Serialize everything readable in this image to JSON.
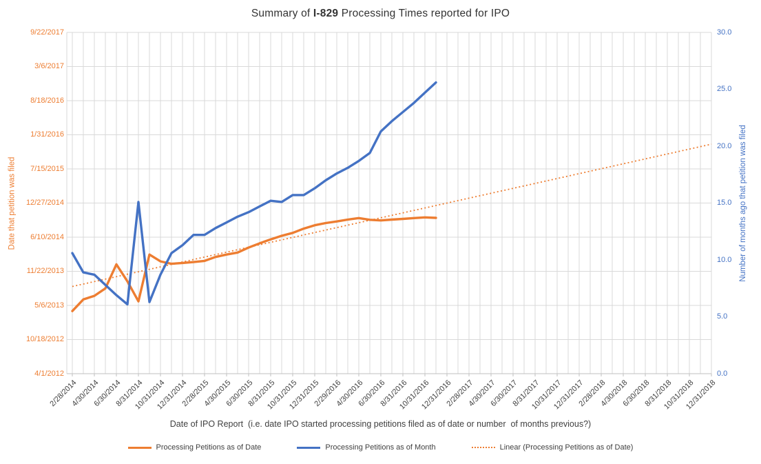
{
  "title": {
    "prefix": "Summary of ",
    "emphasis": "I-829",
    "suffix": " Processing Times reported for IPO"
  },
  "colors": {
    "orange_series": "#ED7D31",
    "blue_series": "#4472C4",
    "gridline": "#D9D9D9",
    "axis_line": "#BFBFBF",
    "tick_text": "#404040"
  },
  "chart_data": {
    "type": "line",
    "title": "Summary of I-829 Processing Times reported for IPO",
    "x_axis": {
      "title": "Date of IPO Report  (i.e. date IPO started processing petitions filed as of date or number  of months previous?)",
      "tick_labels": [
        "2/28/2014",
        "4/30/2014",
        "6/30/2014",
        "8/31/2014",
        "10/31/2014",
        "12/31/2014",
        "2/28/2015",
        "4/30/2015",
        "6/30/2015",
        "8/31/2015",
        "10/31/2015",
        "12/31/2015",
        "2/29/2016",
        "4/30/2016",
        "6/30/2016",
        "8/31/2016",
        "10/31/2016",
        "12/31/2016",
        "2/28/2017",
        "4/30/2017",
        "6/30/2017",
        "8/31/2017",
        "10/31/2017",
        "12/31/2017",
        "2/28/2018",
        "4/30/2018",
        "6/30/2018",
        "8/31/2018",
        "10/31/2018",
        "12/31/2018"
      ],
      "months_spanned": 59,
      "grid": "vertical gridline every month"
    },
    "left_axis": {
      "title": "Date that petition was filed",
      "tick_labels": [
        "9/22/2017",
        "3/6/2017",
        "8/18/2016",
        "1/31/2016",
        "7/15/2015",
        "12/27/2014",
        "6/10/2014",
        "11/22/2013",
        "5/6/2013",
        "10/18/2012",
        "4/1/2012"
      ],
      "min_date": "4/1/2012",
      "max_date": "9/22/2017",
      "span_days": 2000
    },
    "right_axis": {
      "title": "Number of months ago that petition was filed",
      "tick_labels": [
        "30.0",
        "25.0",
        "20.0",
        "15.0",
        "10.0",
        "5.0",
        "0.0"
      ],
      "min": 0,
      "max": 30
    },
    "report_dates": [
      "2/28/2014",
      "3/31/2014",
      "4/30/2014",
      "5/31/2014",
      "6/30/2014",
      "7/31/2014",
      "8/31/2014",
      "9/30/2014",
      "10/31/2014",
      "11/30/2014",
      "12/31/2014",
      "1/31/2015",
      "2/28/2015",
      "3/31/2015",
      "4/30/2015",
      "5/31/2015",
      "6/30/2015",
      "7/31/2015",
      "8/31/2015",
      "9/30/2015",
      "10/31/2015",
      "11/30/2015",
      "12/31/2015",
      "1/31/2016",
      "2/29/2016",
      "3/31/2016",
      "4/30/2016",
      "5/31/2016",
      "6/30/2016",
      "7/31/2016",
      "8/31/2016",
      "9/30/2016",
      "10/31/2016",
      "11/30/2016"
    ],
    "series": [
      {
        "name": "Processing Petitions as of Date",
        "axis": "left",
        "color": "#ED7D31",
        "style": "solid",
        "values": [
          "4/3/2013",
          "6/10/2013",
          "7/1/2013",
          "8/14/2013",
          "1/2/2014",
          "9/24/2013",
          "5/30/2013",
          "2/28/2014",
          "1/19/2014",
          "1/5/2014",
          "1/10/2014",
          "1/15/2014",
          "1/22/2014",
          "2/14/2014",
          "2/28/2014",
          "3/12/2014",
          "4/10/2014",
          "5/5/2014",
          "5/28/2014",
          "6/18/2014",
          "7/5/2014",
          "7/30/2014",
          "8/19/2014",
          "9/1/2014",
          "9/10/2014",
          "9/21/2014",
          "9/30/2014",
          "9/20/2014",
          "9/16/2014",
          "9/21/2014",
          "9/25/2014",
          "9/30/2014",
          "10/4/2014",
          "10/1/2014"
        ]
      },
      {
        "name": "Processing Petitions as of Month",
        "axis": "right",
        "color": "#4472C4",
        "style": "solid",
        "values": [
          10.6,
          8.9,
          8.7,
          7.8,
          6.9,
          6.1,
          15.1,
          6.3,
          8.7,
          10.6,
          11.3,
          12.2,
          12.2,
          12.8,
          13.3,
          13.8,
          14.2,
          14.7,
          15.2,
          15.1,
          15.7,
          15.7,
          16.3,
          17.0,
          17.6,
          18.1,
          18.7,
          19.4,
          21.3,
          22.2,
          23.0,
          23.8,
          24.7,
          25.6
        ]
      },
      {
        "name": "Linear (Processing Petitions as of Date)",
        "axis": "left",
        "color": "#ED7D31",
        "style": "dotted",
        "trendline": {
          "start_category": "2/28/2014",
          "start_value": "8/25/2013",
          "end_category": "12/31/2018",
          "end_value": "12/7/2015"
        }
      }
    ],
    "legend": {
      "position": "bottom",
      "entries": [
        "Processing Petitions as of Date",
        "Processing Petitions as of Month",
        "Linear (Processing Petitions as of Date)"
      ]
    }
  }
}
